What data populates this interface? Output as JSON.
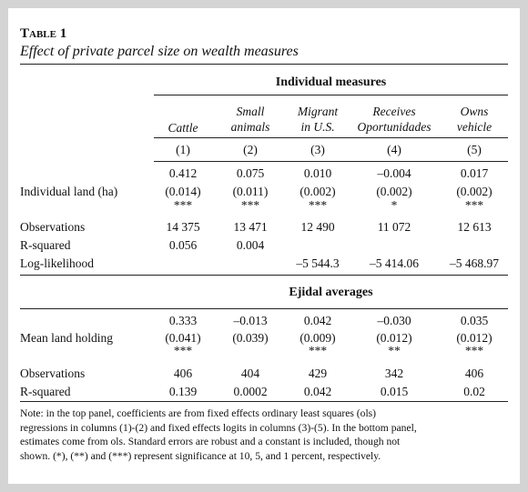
{
  "table": {
    "label": "Table 1",
    "title": "Effect of private parcel size on wealth measures",
    "columns": [
      [
        "Cattle"
      ],
      [
        "Small",
        "animals"
      ],
      [
        "Migrant",
        "in U.S."
      ],
      [
        "Receives",
        "Oportunidades"
      ],
      [
        "Owns",
        "vehicle"
      ]
    ],
    "column_numbers": [
      "(1)",
      "(2)",
      "(3)",
      "(4)",
      "(5)"
    ],
    "panels": [
      {
        "heading": "Individual measures",
        "rows": [
          {
            "label": null,
            "cells": [
              "0.412",
              "0.075",
              "0.010",
              "–0.004",
              "0.017"
            ]
          },
          {
            "label": "Individual land (ha)",
            "cells": [
              "(0.014)",
              "(0.011)",
              "(0.002)",
              "(0.002)",
              "(0.002)"
            ]
          },
          {
            "label": null,
            "cells": [
              "***",
              "***",
              "***",
              "*",
              "***"
            ]
          },
          {
            "label": "Observations",
            "cells": [
              "14 375",
              "13 471",
              "12 490",
              "11 072",
              "12 613"
            ]
          },
          {
            "label": "R-squared",
            "cells": [
              "0.056",
              "0.004",
              null,
              null,
              null
            ]
          },
          {
            "label": "Log-likelihood",
            "cells": [
              null,
              null,
              "–5 544.3",
              "–5 414.06",
              "–5 468.97"
            ]
          }
        ]
      },
      {
        "heading": "Ejidal averages",
        "rows": [
          {
            "label": null,
            "cells": [
              "0.333",
              "–0.013",
              "0.042",
              "–0.030",
              "0.035"
            ]
          },
          {
            "label": "Mean land holding",
            "cells": [
              "(0.041)",
              "(0.039)",
              "(0.009)",
              "(0.012)",
              "(0.012)"
            ]
          },
          {
            "label": null,
            "cells": [
              "***",
              null,
              "***",
              "**",
              "***"
            ]
          },
          {
            "label": "Observations",
            "cells": [
              "406",
              "404",
              "429",
              "342",
              "406"
            ]
          },
          {
            "label": "R-squared",
            "cells": [
              "0.139",
              "0.0002",
              "0.042",
              "0.015",
              "0.02"
            ]
          }
        ]
      }
    ],
    "note": [
      "Note: in the top panel, coefficients are from fixed effects ordinary least squares (ols)",
      "regressions in columns (1)-(2) and fixed effects logits in columns (3)-(5). In the bottom panel,",
      "estimates come from ols. Standard errors are robust and a constant is included, though not",
      "shown. (*), (**) and (***) represent significance at 10, 5, and 1 percent, respectively."
    ]
  }
}
